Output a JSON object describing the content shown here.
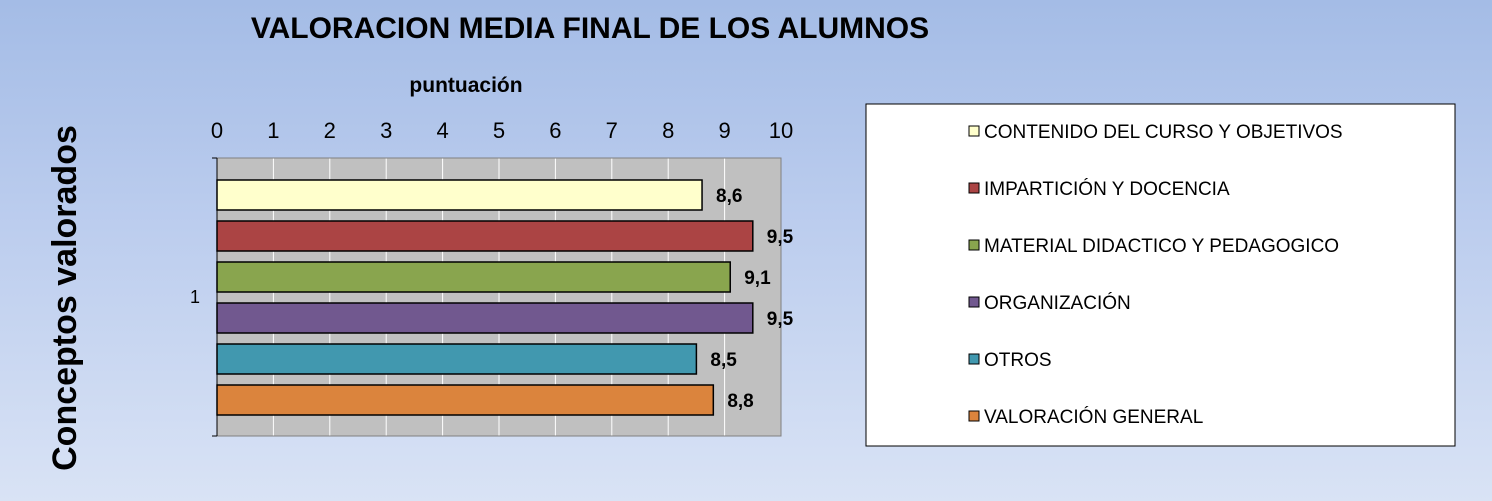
{
  "chart_data": {
    "type": "bar",
    "orientation": "horizontal",
    "title": "VALORACION MEDIA FINAL DE LOS ALUMNOS",
    "xlabel": "puntuación",
    "ylabel": "Conceptos valorados",
    "xlim": [
      0,
      10
    ],
    "x_ticks": [
      "0",
      "1",
      "2",
      "3",
      "4",
      "5",
      "6",
      "7",
      "8",
      "9",
      "10"
    ],
    "categories": [
      "1"
    ],
    "grid": true,
    "legend_position": "right",
    "series": [
      {
        "name": "CONTENIDO DEL CURSO Y OBJETIVOS",
        "values": [
          8.6
        ],
        "label": "8,6",
        "color": "#ffffcc"
      },
      {
        "name": "IMPARTICIÓN Y DOCENCIA",
        "values": [
          9.5
        ],
        "label": "9,5",
        "color": "#ab4444"
      },
      {
        "name": "MATERIAL DIDACTICO Y PEDAGOGICO",
        "values": [
          9.1
        ],
        "label": "9,1",
        "color": "#89a54e"
      },
      {
        "name": "ORGANIZACIÓN",
        "values": [
          9.5
        ],
        "label": "9,5",
        "color": "#71588f"
      },
      {
        "name": "OTROS",
        "values": [
          8.5
        ],
        "label": "8,5",
        "color": "#4198af"
      },
      {
        "name": "VALORACIÓN GENERAL",
        "values": [
          8.8
        ],
        "label": "8,8",
        "color": "#db843d"
      }
    ]
  },
  "colors": {
    "plot_background": "#c0c0c0",
    "gridline": "#ffffff"
  }
}
